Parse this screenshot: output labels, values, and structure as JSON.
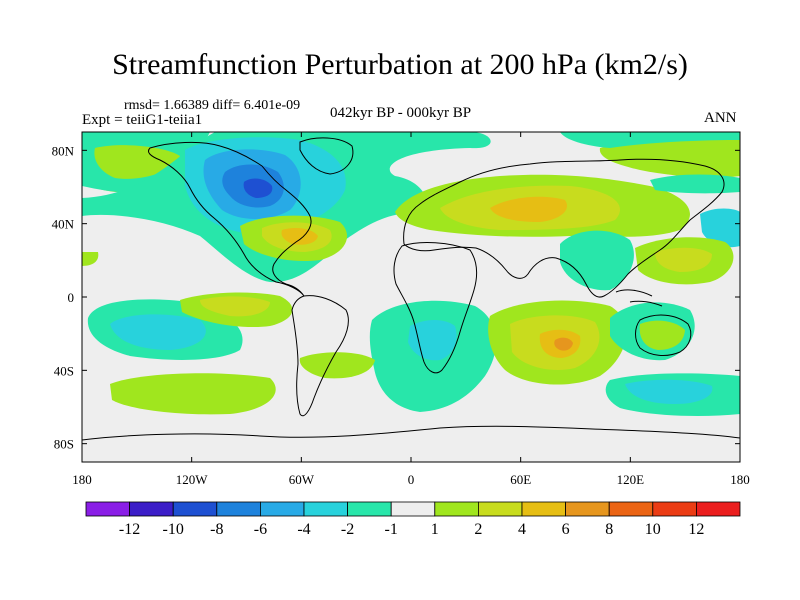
{
  "title": "Streamfunction Perturbation at 200 hPa (km2/s)",
  "stats_line": "rmsd= 1.66389 diff= 6.401e-09",
  "experiment_line": "Expt = teiiG1-teiia1",
  "period_line": "042kyr BP - 000kyr BP",
  "season_label": "ANN",
  "lat_labels": [
    {
      "lat": 80,
      "label": "80N"
    },
    {
      "lat": 40,
      "label": "40N"
    },
    {
      "lat": 0,
      "label": "0"
    },
    {
      "lat": -40,
      "label": "40S"
    },
    {
      "lat": -80,
      "label": "80S"
    }
  ],
  "lon_labels": [
    {
      "lon": -180,
      "label": "180"
    },
    {
      "lon": -120,
      "label": "120W"
    },
    {
      "lon": -60,
      "label": "60W"
    },
    {
      "lon": 0,
      "label": "0"
    },
    {
      "lon": 60,
      "label": "60E"
    },
    {
      "lon": 120,
      "label": "120E"
    },
    {
      "lon": 180,
      "label": "180"
    }
  ],
  "colorbar": {
    "labels": [
      "-12",
      "-10",
      "-8",
      "-6",
      "-4",
      "-2",
      "-1",
      "1",
      "2",
      "4",
      "6",
      "8",
      "10",
      "12"
    ],
    "colors": [
      "#8a1ee6",
      "#3c1ec8",
      "#1e50d2",
      "#1e82dc",
      "#28aae6",
      "#28d2dc",
      "#28e6aa",
      "#eeeeee",
      "#a0e61e",
      "#c8dc1e",
      "#e6be14",
      "#e6961e",
      "#eb6414",
      "#eb3c14",
      "#eb1e1e"
    ]
  },
  "colors": {
    "map_background": "#eeeeee"
  }
}
